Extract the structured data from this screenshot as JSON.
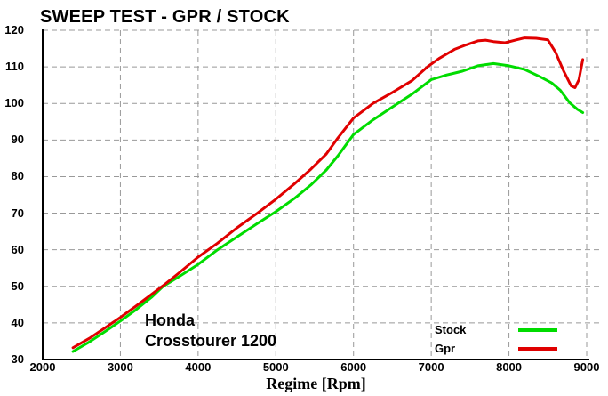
{
  "title": "SWEEP TEST - GPR / STOCK",
  "annotation": {
    "line1": "Honda",
    "line2": "Crosstourer 1200"
  },
  "legend": {
    "position": "lower-right",
    "items": [
      {
        "label": "Stock",
        "color": "#00DC00"
      },
      {
        "label": "Gpr",
        "color": "#E00000"
      }
    ]
  },
  "colors": {
    "stock_line": "#00DC00",
    "gpr_line": "#E00000",
    "grid": "#999999",
    "axis": "#000000",
    "background": "#ffffff"
  },
  "chart_data": {
    "type": "line",
    "title": "SWEEP TEST - GPR / STOCK",
    "xlabel": "Regime [Rpm]",
    "ylabel": "",
    "xlim": [
      2000,
      9000
    ],
    "ylim": [
      30,
      120
    ],
    "x_ticks": [
      2000,
      3000,
      4000,
      5000,
      6000,
      7000,
      8000,
      9000
    ],
    "y_ticks": [
      30,
      40,
      50,
      60,
      70,
      80,
      90,
      100,
      110,
      120
    ],
    "grid": true,
    "legend_position": "lower right",
    "series": [
      {
        "name": "Stock",
        "color": "#00DC00",
        "points": [
          [
            2390,
            32.2
          ],
          [
            2600,
            34.8
          ],
          [
            2800,
            37.6
          ],
          [
            3000,
            40.5
          ],
          [
            3200,
            43.6
          ],
          [
            3400,
            47.0
          ],
          [
            3550,
            50.0
          ],
          [
            3750,
            52.6
          ],
          [
            4000,
            56.0
          ],
          [
            4250,
            60.0
          ],
          [
            4500,
            63.5
          ],
          [
            4750,
            67.0
          ],
          [
            5000,
            70.4
          ],
          [
            5250,
            74.2
          ],
          [
            5450,
            77.7
          ],
          [
            5650,
            81.8
          ],
          [
            5800,
            85.7
          ],
          [
            6000,
            91.5
          ],
          [
            6250,
            95.5
          ],
          [
            6500,
            99.0
          ],
          [
            6750,
            102.5
          ],
          [
            7000,
            106.5
          ],
          [
            7200,
            107.8
          ],
          [
            7400,
            108.8
          ],
          [
            7600,
            110.3
          ],
          [
            7800,
            110.9
          ],
          [
            8000,
            110.3
          ],
          [
            8200,
            109.3
          ],
          [
            8400,
            107.3
          ],
          [
            8550,
            105.6
          ],
          [
            8660,
            103.6
          ],
          [
            8780,
            100.2
          ],
          [
            8880,
            98.4
          ],
          [
            8950,
            97.5
          ]
        ]
      },
      {
        "name": "Gpr",
        "color": "#E00000",
        "points": [
          [
            2390,
            33.2
          ],
          [
            2600,
            35.8
          ],
          [
            2800,
            38.6
          ],
          [
            3000,
            41.5
          ],
          [
            3200,
            44.6
          ],
          [
            3400,
            47.8
          ],
          [
            3550,
            50.2
          ],
          [
            3750,
            53.6
          ],
          [
            4000,
            58.0
          ],
          [
            4250,
            61.8
          ],
          [
            4500,
            66.0
          ],
          [
            4750,
            69.8
          ],
          [
            5000,
            73.8
          ],
          [
            5250,
            78.2
          ],
          [
            5450,
            82.0
          ],
          [
            5650,
            86.2
          ],
          [
            5800,
            90.6
          ],
          [
            6000,
            96.0
          ],
          [
            6250,
            100.0
          ],
          [
            6500,
            103.0
          ],
          [
            6750,
            106.2
          ],
          [
            6950,
            110.0
          ],
          [
            7100,
            112.3
          ],
          [
            7300,
            114.8
          ],
          [
            7450,
            116.0
          ],
          [
            7600,
            117.1
          ],
          [
            7700,
            117.3
          ],
          [
            7800,
            116.9
          ],
          [
            7950,
            116.6
          ],
          [
            8100,
            117.4
          ],
          [
            8200,
            117.9
          ],
          [
            8350,
            117.8
          ],
          [
            8500,
            117.4
          ],
          [
            8600,
            114.0
          ],
          [
            8700,
            109.0
          ],
          [
            8800,
            104.8
          ],
          [
            8850,
            104.3
          ],
          [
            8900,
            106.5
          ],
          [
            8950,
            112.0
          ]
        ]
      }
    ]
  }
}
